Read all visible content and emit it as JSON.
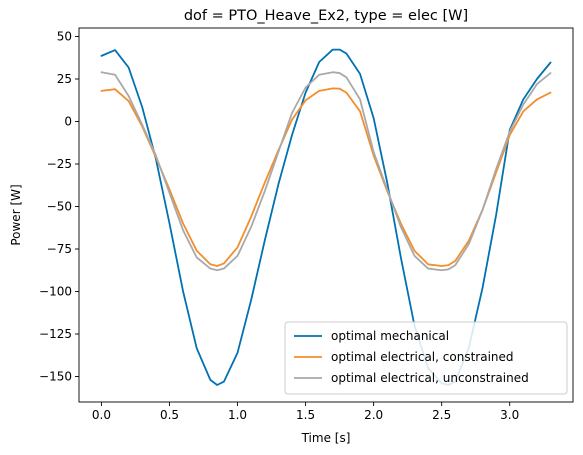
{
  "chart_data": {
    "type": "line",
    "title": "dof = PTO_Heave_Ex2, type = elec [W]",
    "xlabel": "Time [s]",
    "ylabel": "Power [W]",
    "xlim": [
      -0.165,
      3.465
    ],
    "ylim": [
      -165,
      55
    ],
    "xticks": [
      0.0,
      0.5,
      1.0,
      1.5,
      2.0,
      2.5,
      3.0
    ],
    "xtick_labels": [
      "0.0",
      "0.5",
      "1.0",
      "1.5",
      "2.0",
      "2.5",
      "3.0"
    ],
    "yticks": [
      -150,
      -125,
      -100,
      -75,
      -50,
      -25,
      0,
      25,
      50
    ],
    "ytick_labels": [
      "−150",
      "−125",
      "−100",
      "−75",
      "−50",
      "−25",
      "0",
      "25",
      "50"
    ],
    "grid": false,
    "legend_position": "lower-right",
    "series": [
      {
        "name": "optimal mechanical",
        "color": "#0072b2",
        "x": [
          0.0,
          0.1,
          0.2,
          0.3,
          0.4,
          0.5,
          0.6,
          0.7,
          0.8,
          0.85,
          0.9,
          1.0,
          1.1,
          1.2,
          1.3,
          1.4,
          1.5,
          1.6,
          1.7,
          1.75,
          1.8,
          1.9,
          2.0,
          2.1,
          2.2,
          2.3,
          2.4,
          2.5,
          2.55,
          2.6,
          2.7,
          2.8,
          2.9,
          3.0,
          3.1,
          3.2,
          3.3
        ],
        "y": [
          38.6,
          42.0,
          31.7,
          8.3,
          -22.0,
          -60.0,
          -100.0,
          -133.4,
          -152.0,
          -155.0,
          -153.0,
          -136.0,
          -105.0,
          -70.0,
          -37.0,
          -8.0,
          17.0,
          35.0,
          42.3,
          42.3,
          40.0,
          28.0,
          2.0,
          -36.0,
          -80.0,
          -120.0,
          -145.0,
          -154.0,
          -155.0,
          -153.0,
          -133.0,
          -98.0,
          -55.0,
          -5.0,
          13.0,
          25.0,
          34.7
        ]
      },
      {
        "name": "optimal electrical, constrained",
        "color": "#f28e2b",
        "x": [
          0.0,
          0.1,
          0.2,
          0.3,
          0.4,
          0.5,
          0.6,
          0.7,
          0.8,
          0.85,
          0.9,
          1.0,
          1.1,
          1.2,
          1.3,
          1.4,
          1.5,
          1.6,
          1.7,
          1.75,
          1.8,
          1.9,
          2.0,
          2.1,
          2.2,
          2.3,
          2.4,
          2.5,
          2.55,
          2.6,
          2.7,
          2.8,
          2.9,
          3.0,
          3.1,
          3.2,
          3.3
        ],
        "y": [
          18.0,
          19.0,
          12.0,
          -3.0,
          -21.0,
          -40.0,
          -60.0,
          -76.0,
          -84.0,
          -85.0,
          -83.5,
          -74.0,
          -56.0,
          -36.0,
          -17.0,
          1.0,
          12.5,
          18.0,
          19.5,
          19.3,
          17.0,
          6.0,
          -20.0,
          -41.0,
          -60.0,
          -76.0,
          -84.0,
          -85.0,
          -84.5,
          -82.0,
          -70.0,
          -52.0,
          -30.0,
          -8.0,
          6.0,
          13.0,
          17.0
        ]
      },
      {
        "name": "optimal electrical, unconstrained",
        "color": "#a9a9a9",
        "x": [
          0.0,
          0.1,
          0.2,
          0.3,
          0.4,
          0.5,
          0.6,
          0.7,
          0.8,
          0.85,
          0.9,
          1.0,
          1.1,
          1.2,
          1.3,
          1.4,
          1.5,
          1.6,
          1.7,
          1.75,
          1.8,
          1.9,
          2.0,
          2.1,
          2.2,
          2.3,
          2.4,
          2.5,
          2.55,
          2.6,
          2.7,
          2.8,
          2.9,
          3.0,
          3.1,
          3.2,
          3.3
        ],
        "y": [
          29.0,
          27.5,
          15.0,
          -2.0,
          -20.0,
          -42.0,
          -64.0,
          -80.0,
          -86.5,
          -87.5,
          -86.5,
          -79.0,
          -62.0,
          -41.0,
          -18.0,
          5.0,
          20.0,
          27.5,
          29.0,
          28.5,
          26.0,
          13.0,
          -18.0,
          -40.0,
          -62.0,
          -79.0,
          -86.5,
          -87.5,
          -87.0,
          -84.5,
          -72.0,
          -52.0,
          -28.0,
          -6.0,
          10.0,
          22.0,
          28.5
        ]
      }
    ]
  }
}
